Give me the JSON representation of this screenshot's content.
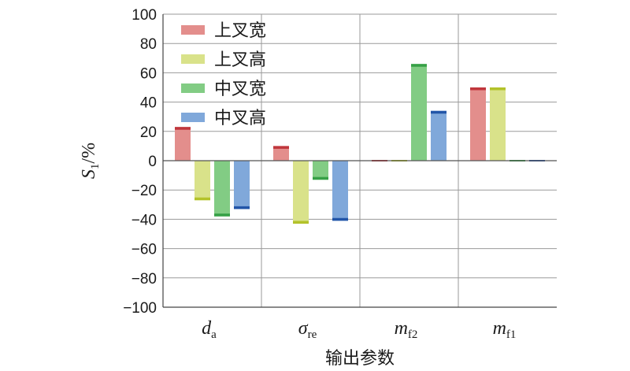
{
  "chart_data": {
    "type": "bar",
    "categories": [
      {
        "main": "d",
        "sub": "a"
      },
      {
        "main": "σ",
        "sub": "re"
      },
      {
        "main": "m",
        "sub": "f2"
      },
      {
        "main": "m",
        "sub": "f1"
      }
    ],
    "series": [
      {
        "name": "上叉宽",
        "values": [
          23,
          10,
          0,
          50
        ],
        "color": "#e38e8c",
        "cap_color": "#c0363c"
      },
      {
        "name": "上叉高",
        "values": [
          -27,
          -43,
          0,
          50
        ],
        "color": "#d9e28a",
        "cap_color": "#b3c22a"
      },
      {
        "name": "中叉宽",
        "values": [
          -38,
          -13,
          66,
          0
        ],
        "color": "#82cc84",
        "cap_color": "#36a046"
      },
      {
        "name": "中叉高",
        "values": [
          -33,
          -41,
          34,
          0
        ],
        "color": "#80a8da",
        "cap_color": "#2255a8"
      }
    ],
    "ylim": [
      -100,
      100
    ],
    "yticks": [
      "100",
      "80",
      "60",
      "40",
      "20",
      "0",
      "−20",
      "−40",
      "−60",
      "−80",
      "−100"
    ],
    "ylabel": {
      "main": "S",
      "sub": "1",
      "rest": "/%"
    },
    "xlabel": "输出参数",
    "grid": true,
    "legend_position": "top-left"
  }
}
